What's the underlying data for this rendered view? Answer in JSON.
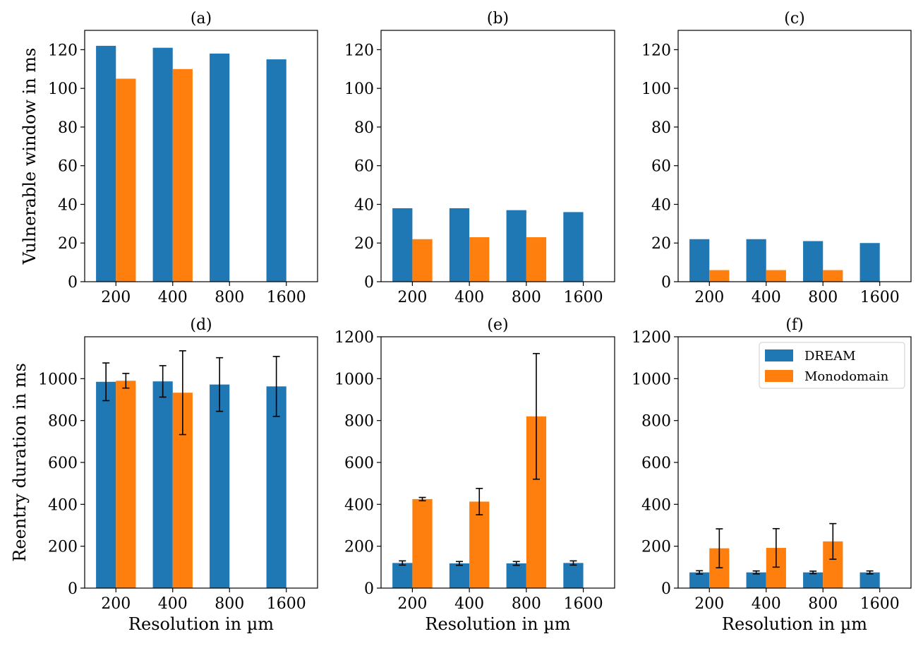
{
  "chart_data": [
    {
      "id": "a",
      "type": "bar",
      "title": "(a)",
      "xlabel": "",
      "ylabel": "Vulnerable window in ms",
      "categories": [
        "200",
        "400",
        "800",
        "1600"
      ],
      "ylim": [
        0,
        130
      ],
      "yticks": [
        0,
        20,
        40,
        60,
        80,
        100,
        120
      ],
      "series": [
        {
          "name": "DREAM",
          "color": "#1f77b4",
          "values": [
            122,
            121,
            118,
            115
          ]
        },
        {
          "name": "Monodomain",
          "color": "#ff7f0e",
          "values": [
            105,
            110,
            0,
            0
          ]
        }
      ]
    },
    {
      "id": "b",
      "type": "bar",
      "title": "(b)",
      "xlabel": "",
      "ylabel": "",
      "categories": [
        "200",
        "400",
        "800",
        "1600"
      ],
      "ylim": [
        0,
        130
      ],
      "yticks": [
        0,
        20,
        40,
        60,
        80,
        100,
        120
      ],
      "series": [
        {
          "name": "DREAM",
          "color": "#1f77b4",
          "values": [
            38,
            38,
            37,
            36
          ]
        },
        {
          "name": "Monodomain",
          "color": "#ff7f0e",
          "values": [
            22,
            23,
            23,
            0
          ]
        }
      ]
    },
    {
      "id": "c",
      "type": "bar",
      "title": "(c)",
      "xlabel": "",
      "ylabel": "",
      "categories": [
        "200",
        "400",
        "800",
        "1600"
      ],
      "ylim": [
        0,
        130
      ],
      "yticks": [
        0,
        20,
        40,
        60,
        80,
        100,
        120
      ],
      "series": [
        {
          "name": "DREAM",
          "color": "#1f77b4",
          "values": [
            22,
            22,
            21,
            20
          ]
        },
        {
          "name": "Monodomain",
          "color": "#ff7f0e",
          "values": [
            6,
            6,
            6,
            0
          ]
        }
      ]
    },
    {
      "id": "d",
      "type": "bar",
      "title": "(d)",
      "xlabel": "Resolution in µm",
      "ylabel": "Reentry duration in ms",
      "categories": [
        "200",
        "400",
        "800",
        "1600"
      ],
      "ylim": [
        0,
        1200
      ],
      "yticks": [
        0,
        200,
        400,
        600,
        800,
        1000
      ],
      "series": [
        {
          "name": "DREAM",
          "color": "#1f77b4",
          "values": [
            985,
            987,
            972,
            963
          ],
          "errors": [
            90,
            75,
            128,
            143
          ]
        },
        {
          "name": "Monodomain",
          "color": "#ff7f0e",
          "values": [
            990,
            933,
            0,
            0
          ],
          "errors": [
            35,
            200,
            0,
            0
          ]
        }
      ]
    },
    {
      "id": "e",
      "type": "bar",
      "title": "(e)",
      "xlabel": "Resolution in µm",
      "ylabel": "",
      "categories": [
        "200",
        "400",
        "800",
        "1600"
      ],
      "ylim": [
        0,
        1200
      ],
      "yticks": [
        0,
        200,
        400,
        600,
        800,
        1000,
        1200
      ],
      "series": [
        {
          "name": "DREAM",
          "color": "#1f77b4",
          "values": [
            120,
            118,
            118,
            120
          ],
          "errors": [
            10,
            9,
            9,
            10
          ]
        },
        {
          "name": "Monodomain",
          "color": "#ff7f0e",
          "values": [
            425,
            413,
            820,
            0
          ],
          "errors": [
            8,
            63,
            300,
            0
          ]
        }
      ]
    },
    {
      "id": "f",
      "type": "bar",
      "title": "(f)",
      "xlabel": "Resolution in µm",
      "ylabel": "",
      "categories": [
        "200",
        "400",
        "800",
        "1600"
      ],
      "ylim": [
        0,
        1200
      ],
      "yticks": [
        0,
        200,
        400,
        600,
        800,
        1000,
        1200
      ],
      "legend": {
        "position": "upper right",
        "entries": [
          "DREAM",
          "Monodomain"
        ]
      },
      "series": [
        {
          "name": "DREAM",
          "color": "#1f77b4",
          "values": [
            75,
            75,
            75,
            75
          ],
          "errors": [
            8,
            7,
            6,
            7
          ]
        },
        {
          "name": "Monodomain",
          "color": "#ff7f0e",
          "values": [
            190,
            192,
            223,
            0
          ],
          "errors": [
            93,
            92,
            85,
            0
          ]
        }
      ]
    }
  ]
}
